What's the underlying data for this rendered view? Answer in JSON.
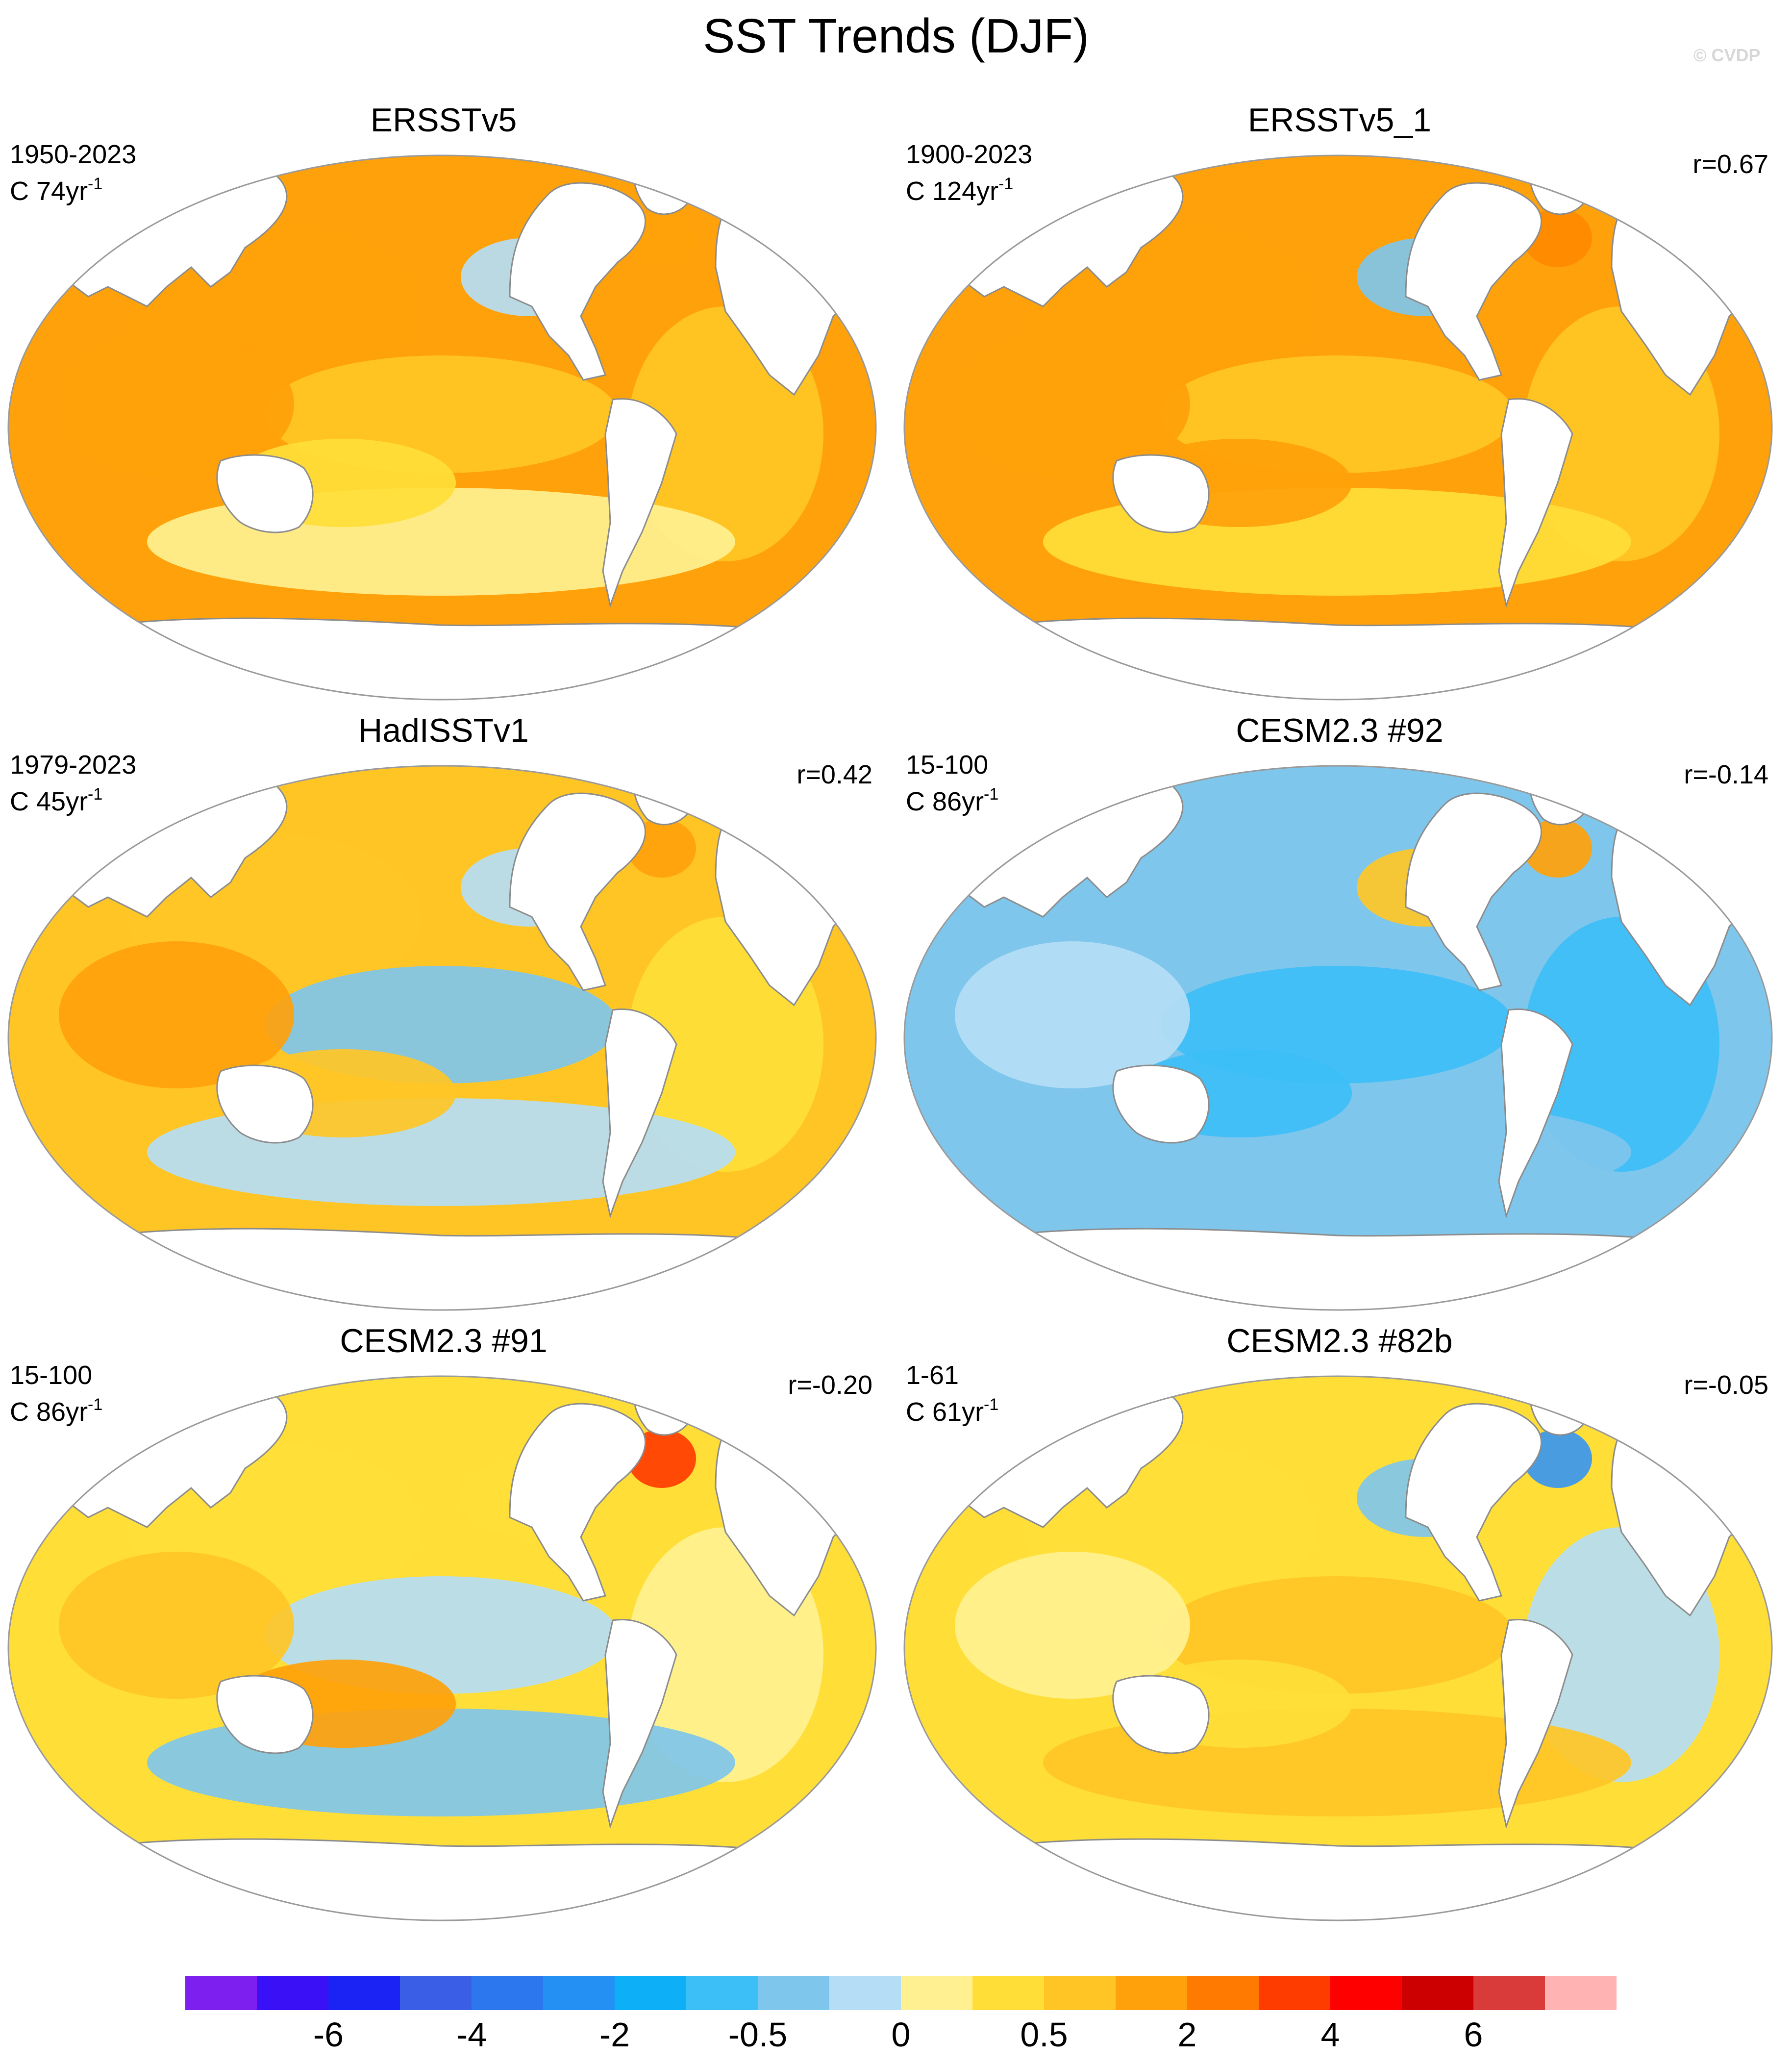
{
  "title": "SST Trends (DJF)",
  "watermark": "© CVDP",
  "colors": {
    "land": "#ffffff",
    "coast": "#8c8c8c",
    "outline": "#9a9a9a"
  },
  "panels": [
    {
      "name": "ERSSTv5",
      "period": "1950-2023",
      "units_prefix": "C ",
      "units_num": "74yr",
      "units_exp": "-1",
      "correlation": "",
      "palette": [
        "#ffa10a",
        "#ffc525",
        "#ffa10a",
        "#ffc525",
        "#fff191",
        "#ffde38",
        "#b5ddf5",
        "#ffa10a"
      ]
    },
    {
      "name": "ERSSTv5_1",
      "period": "1900-2023",
      "units_prefix": "C ",
      "units_num": "124yr",
      "units_exp": "-1",
      "correlation": "r=0.67",
      "palette": [
        "#ffa10a",
        "#ffc525",
        "#ffa10a",
        "#ffc525",
        "#ffde38",
        "#ffa10a",
        "#7fc6ec",
        "#ff8a00"
      ]
    },
    {
      "name": "HadISSTv1",
      "period": "1979-2023",
      "units_prefix": "C ",
      "units_num": "45yr",
      "units_exp": "-1",
      "correlation": "r=0.42",
      "palette": [
        "#ffc525",
        "#7fc6ec",
        "#ffa10a",
        "#ffde38",
        "#b5ddf5",
        "#ffc525",
        "#b5ddf5",
        "#ffa10a"
      ]
    },
    {
      "name": "CESM2.3 #92",
      "period": "15-100",
      "units_prefix": "C ",
      "units_num": "86yr",
      "units_exp": "-1",
      "correlation": "r=-0.14",
      "palette": [
        "#7fc6ec",
        "#3cbef6",
        "#b5ddf5",
        "#3cbef6",
        "#7fc6ec",
        "#3cbef6",
        "#ffc525",
        "#ffa10a"
      ]
    },
    {
      "name": "CESM2.3 #91",
      "period": "15-100",
      "units_prefix": "C ",
      "units_num": "86yr",
      "units_exp": "-1",
      "correlation": "r=-0.20",
      "palette": [
        "#ffde38",
        "#b5ddf5",
        "#ffc525",
        "#fff191",
        "#7fc6ec",
        "#ffa10a",
        "#ffde38",
        "#ff3c00"
      ]
    },
    {
      "name": "CESM2.3 #82b",
      "period": "1-61",
      "units_prefix": "C ",
      "units_num": "61yr",
      "units_exp": "-1",
      "correlation": "r=-0.05",
      "palette": [
        "#ffde38",
        "#ffc525",
        "#fff191",
        "#b5ddf5",
        "#ffc525",
        "#ffde38",
        "#7fc6ec",
        "#3a96ee"
      ]
    }
  ],
  "colorbar": {
    "colors": [
      "#7d1fef",
      "#3a10f6",
      "#1a22f4",
      "#3a5fe6",
      "#2d77ee",
      "#2590f4",
      "#0db0f7",
      "#3cbef6",
      "#7fc6ec",
      "#b5ddf5",
      "#fff191",
      "#ffde38",
      "#ffc525",
      "#ffa10a",
      "#ff7a00",
      "#ff3c00",
      "#ff0000",
      "#cc0000",
      "#d93a3a",
      "#ffb3b3"
    ],
    "ticks": [
      {
        "label": "-6",
        "boundary": 2
      },
      {
        "label": "-4",
        "boundary": 4
      },
      {
        "label": "-2",
        "boundary": 6
      },
      {
        "label": "-0.5",
        "boundary": 8
      },
      {
        "label": "0",
        "boundary": 10
      },
      {
        "label": "0.5",
        "boundary": 12
      },
      {
        "label": "2",
        "boundary": 14
      },
      {
        "label": "4",
        "boundary": 16
      },
      {
        "label": "6",
        "boundary": 18
      }
    ]
  }
}
